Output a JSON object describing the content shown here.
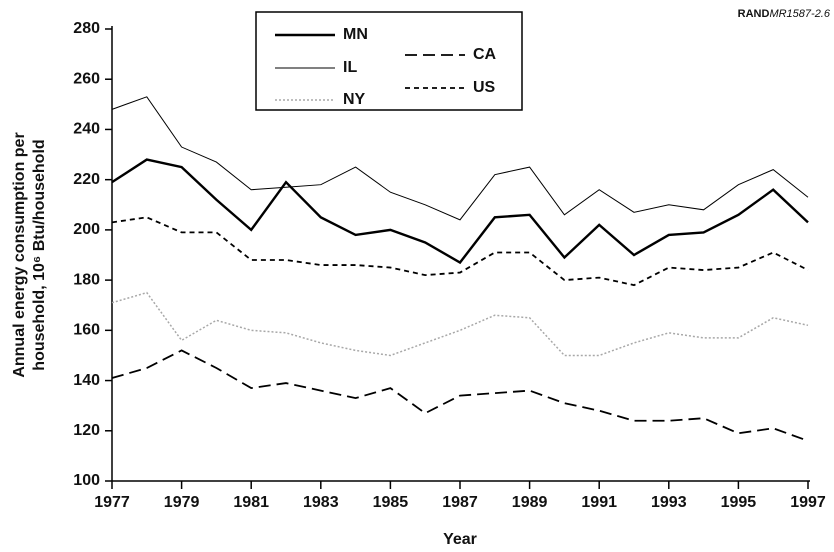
{
  "chart_data": {
    "type": "line",
    "annotation": [
      "RAND",
      "MR1587-2.6"
    ],
    "xlabel": "Year",
    "ylabel": [
      "Annual energy consumption per",
      "household, 10⁶ Btu/household"
    ],
    "x": [
      1977,
      1978,
      1979,
      1980,
      1981,
      1982,
      1983,
      1984,
      1985,
      1986,
      1987,
      1988,
      1989,
      1990,
      1991,
      1992,
      1993,
      1994,
      1995,
      1996,
      1997
    ],
    "xlim": [
      1977,
      1997
    ],
    "xticks": [
      1977,
      1979,
      1981,
      1983,
      1985,
      1987,
      1989,
      1991,
      1993,
      1995,
      1997
    ],
    "ylim": [
      100,
      280
    ],
    "yticks": [
      100,
      120,
      140,
      160,
      180,
      200,
      220,
      240,
      260,
      280
    ],
    "series": [
      {
        "name": "MN",
        "color": "#000000",
        "style": "solid",
        "linewidth": 2.4,
        "values": [
          219,
          228,
          225,
          212,
          200,
          219,
          205,
          198,
          200,
          195,
          187,
          205,
          206,
          189,
          202,
          190,
          198,
          199,
          206,
          216,
          203
        ]
      },
      {
        "name": "IL",
        "color": "#000000",
        "style": "solid",
        "linewidth": 1,
        "values": [
          248,
          253,
          233,
          227,
          216,
          217,
          218,
          225,
          215,
          210,
          204,
          222,
          225,
          206,
          216,
          207,
          210,
          208,
          218,
          224,
          213
        ]
      },
      {
        "name": "NY",
        "color": "#a8a8a8",
        "style": "dotted",
        "linewidth": 1.5,
        "values": [
          171,
          175,
          156,
          164,
          160,
          159,
          155,
          152,
          150,
          155,
          160,
          166,
          165,
          150,
          150,
          155,
          159,
          157,
          157,
          165,
          162
        ]
      },
      {
        "name": "CA",
        "color": "#000000",
        "style": "dashed",
        "linewidth": 1.8,
        "values": [
          141,
          145,
          152,
          145,
          137,
          139,
          136,
          133,
          137,
          127,
          134,
          135,
          136,
          131,
          128,
          124,
          124,
          125,
          119,
          121,
          116
        ]
      },
      {
        "name": "US",
        "color": "#000000",
        "style": "shortdash",
        "linewidth": 1.8,
        "values": [
          203,
          205,
          199,
          199,
          188,
          188,
          186,
          186,
          185,
          182,
          183,
          191,
          191,
          180,
          181,
          178,
          185,
          184,
          185,
          191,
          184
        ]
      }
    ]
  }
}
